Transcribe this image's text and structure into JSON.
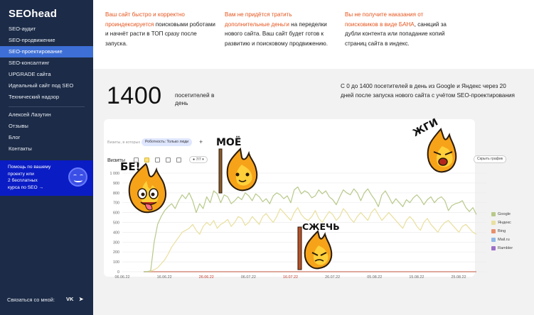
{
  "sidebar": {
    "logo": "SEOhead",
    "items": [
      {
        "label": "SEO-аудит"
      },
      {
        "label": "SEO-продвижение"
      },
      {
        "label": "SEO-проектирование"
      },
      {
        "label": "SEO-консалтинг"
      },
      {
        "label": "UPGRADE сайта"
      },
      {
        "label": "Идеальный сайт под SEO"
      },
      {
        "label": "Технический надзор"
      }
    ],
    "active_item": "SEO-проектирование",
    "items2": [
      {
        "label": "Алексей Лазутин"
      },
      {
        "label": "Отзывы"
      },
      {
        "label": "Блог"
      },
      {
        "label": "Контакты"
      }
    ],
    "promo": {
      "line1": "Помощь по вашему",
      "line2": "проекту или",
      "line3": "2 бесплатных",
      "line4": "курса  по SEO  →"
    },
    "contact_label": "Связаться со мной:",
    "social": {
      "vk": "VK",
      "telegram": "➤"
    }
  },
  "info": [
    {
      "highlight": "Ваш сайт быстро и корректно проиндексируется",
      "text": " поисковыми роботами и начнёт расти в ТОП сразу после запуска."
    },
    {
      "highlight": "Вам не придётся тратить дополнительные деньги",
      "text": " на переделки нового сайта. Ваш сайт будет готов к развитию и поисковому продвижению."
    },
    {
      "highlight": "Вы не получите наказания от поисковиков в виде БАНА",
      "text": ", санкций за дубли контента или попадание копий страниц сайта в индекс."
    }
  ],
  "stats": {
    "big_number": "1400",
    "big_caption": "посетителей в день",
    "description": "С 0 до 1400 посетителей в день из Google и Яндекс через 20 дней после запуска нового сайта с учётом SEO-проектирования"
  },
  "chart_panel": {
    "filter_text": "Визиты, в которых",
    "chip": "Роботность: Только люди",
    "plus": "+",
    "title": "Визиты",
    "period_chip": "● 7/7 ▾",
    "hide_button": "Скрыть график"
  },
  "stickers": {
    "be": "БЕ!",
    "moe": "МОЁ",
    "szhech": "СЖЕЧЬ",
    "zhgi": "ЖГИ"
  },
  "chart_data": {
    "type": "line",
    "ylim": [
      0,
      1000
    ],
    "y_ticks": [
      "0",
      "100",
      "200",
      "300",
      "400",
      "500",
      "600",
      "700",
      "800",
      "900",
      "1 000"
    ],
    "x_ticks": [
      "06.06.22",
      "16.06.22",
      "26.06.22",
      "06.07.22",
      "16.07.22",
      "26.07.22",
      "05.08.22",
      "15.08.22",
      "25.08.22"
    ],
    "x_tick_red": [
      false,
      false,
      true,
      false,
      true,
      false,
      false,
      false,
      false
    ],
    "series": [
      {
        "name": "Google",
        "color": "#b7c98a",
        "values": [
          0,
          0,
          10,
          300,
          480,
          560,
          620,
          660,
          690,
          640,
          720,
          780,
          740,
          800,
          720,
          600,
          690,
          640,
          760,
          700,
          820,
          790,
          700,
          780,
          760,
          690,
          720,
          760,
          730,
          800,
          770,
          720,
          790,
          760,
          710,
          740,
          690,
          770,
          800,
          780,
          740,
          770,
          700,
          830,
          860,
          790,
          820,
          800,
          750,
          770,
          830,
          790,
          820,
          760,
          730,
          680,
          760,
          830,
          800,
          780,
          840,
          800,
          720,
          800,
          840,
          780,
          730,
          660,
          780,
          820,
          760,
          690,
          740,
          700,
          660,
          730,
          700,
          750,
          780,
          740,
          680,
          730,
          760,
          700,
          740,
          760,
          720,
          620,
          670,
          690,
          700,
          720,
          650,
          610,
          650,
          580
        ]
      },
      {
        "name": "Яндекс",
        "color": "#e9df9e",
        "values": [
          0,
          0,
          5,
          20,
          40,
          80,
          120,
          180,
          250,
          300,
          350,
          400,
          420,
          440,
          480,
          420,
          380,
          460,
          500,
          470,
          520,
          440,
          480,
          500,
          530,
          460,
          500,
          560,
          540,
          470,
          500,
          560,
          520,
          480,
          560,
          590,
          540,
          500,
          560,
          640,
          600,
          560,
          520,
          600,
          650,
          580,
          540,
          520,
          560,
          620,
          540,
          500,
          560,
          610,
          580,
          520,
          560,
          640,
          600,
          540,
          500,
          560,
          600,
          560,
          520,
          600,
          640,
          580,
          520,
          560,
          600,
          560,
          520,
          480,
          440,
          520,
          560,
          520,
          460,
          420,
          500,
          540,
          480,
          440,
          400,
          460,
          500,
          520,
          480,
          440,
          400,
          460,
          480,
          440,
          400,
          380
        ]
      },
      {
        "name": "Bing",
        "color": "#e88f6b",
        "values": [
          0,
          0,
          0,
          0,
          0,
          0,
          0,
          0,
          0,
          0,
          0,
          0,
          0,
          0,
          0,
          0,
          0,
          0,
          0,
          0,
          0,
          0,
          0,
          0,
          0,
          0,
          0,
          0,
          0,
          0,
          0,
          0,
          0,
          0,
          0,
          0,
          0,
          0,
          0,
          0,
          0,
          0,
          0,
          0,
          0,
          0,
          0,
          0,
          0,
          0,
          0,
          0,
          0,
          0,
          0,
          0,
          0,
          0,
          0,
          0,
          0,
          0,
          0,
          0,
          0,
          0,
          0,
          0,
          0,
          0,
          0,
          0,
          0,
          0,
          0,
          0,
          0,
          0,
          0,
          0,
          0,
          0,
          0,
          0,
          0,
          0,
          0,
          0,
          0,
          0,
          0,
          0,
          0,
          0,
          0,
          0
        ]
      },
      {
        "name": "Mail.ru",
        "color": "#8fb7e8",
        "values": [
          0,
          0,
          0,
          0,
          0,
          0,
          0,
          0,
          0,
          0,
          0,
          0,
          0,
          0,
          0,
          0,
          0,
          0,
          0,
          0,
          0,
          0,
          0,
          0,
          0,
          0,
          0,
          0,
          0,
          0,
          0,
          0,
          0,
          0,
          0,
          0,
          0,
          0,
          0,
          0,
          0,
          0,
          0,
          0,
          0,
          0,
          0,
          0,
          0,
          0,
          0,
          0,
          0,
          0,
          0,
          0,
          0,
          0,
          0,
          0,
          0,
          0,
          0,
          0,
          0,
          0,
          0,
          0,
          0,
          0,
          0,
          0,
          0,
          0,
          0,
          0,
          0,
          0,
          0,
          0,
          0,
          0,
          0,
          0,
          0,
          0,
          0,
          0,
          0,
          0,
          0,
          0,
          0,
          0,
          0,
          0
        ]
      },
      {
        "name": "Rambler",
        "color": "#9b6fc9",
        "values": [
          0,
          0,
          0,
          0,
          0,
          0,
          0,
          0,
          0,
          0,
          0,
          0,
          0,
          0,
          0,
          0,
          0,
          0,
          0,
          0,
          0,
          0,
          0,
          0,
          0,
          0,
          0,
          0,
          0,
          0,
          0,
          0,
          0,
          0,
          0,
          0,
          0,
          0,
          0,
          0,
          0,
          0,
          0,
          0,
          0,
          0,
          0,
          0,
          0,
          0,
          0,
          0,
          0,
          0,
          0,
          0,
          0,
          0,
          0,
          0,
          0,
          0,
          0,
          0,
          0,
          0,
          0,
          0,
          0,
          0,
          0,
          0,
          0,
          0,
          0,
          0,
          0,
          0,
          0,
          0,
          0,
          0,
          0,
          0,
          0,
          0,
          0,
          0,
          0,
          0,
          0,
          0,
          0,
          0,
          0,
          0
        ]
      }
    ],
    "grid": true,
    "legend_placement": "right"
  },
  "colors": {
    "sidebar_bg": "#1c2b47",
    "active": "#3d6fd6",
    "accent": "#e5561f",
    "promo": "#0a1cc4"
  }
}
